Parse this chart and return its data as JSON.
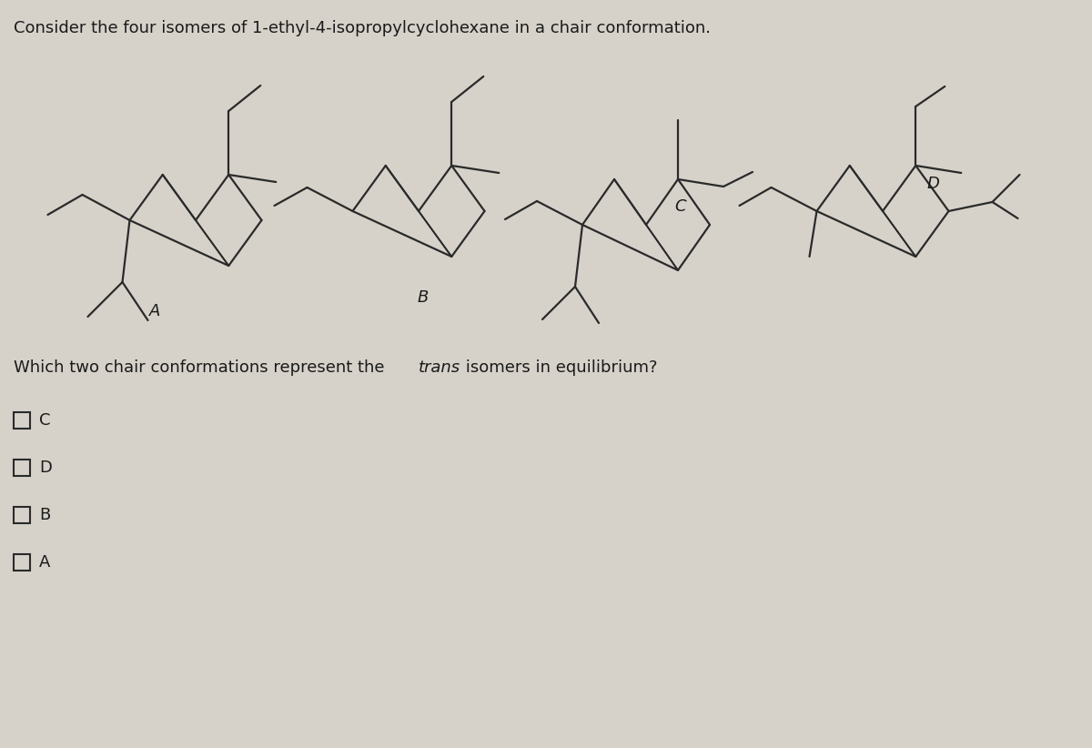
{
  "title": "Consider the four isomers of 1-ethyl-4-isopropylcyclohexane in a chair conformation.",
  "choices": [
    "C",
    "D",
    "B",
    "A"
  ],
  "background_color": "#d6d2ca",
  "line_color": "#2a2a2a",
  "text_color": "#1a1a1a",
  "label_fontsize": 13,
  "title_fontsize": 13,
  "question_fontsize": 13,
  "choice_fontsize": 13,
  "lw": 1.6
}
